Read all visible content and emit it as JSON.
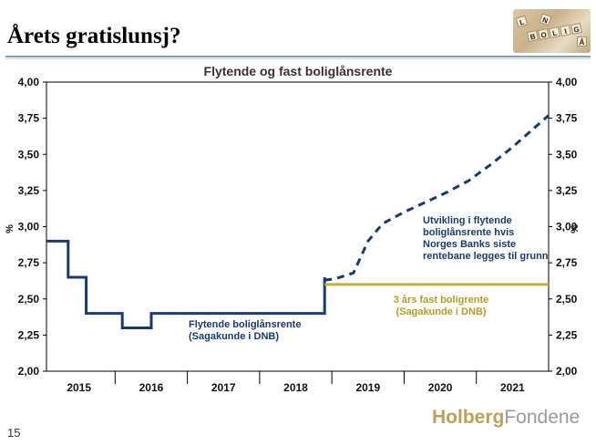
{
  "slide": {
    "title": "Årets gratislunsj?",
    "page_number": "15",
    "logo_bold": "Holberg",
    "logo_rest": "Fondene",
    "image_tiles": [
      "B",
      "O",
      "L",
      "I",
      "G",
      "L",
      "Å",
      "N"
    ]
  },
  "chart_data": {
    "type": "line",
    "title": "Flytende og fast boliglånsrente",
    "ylabel": "%",
    "ylabel_right": "%",
    "ylim": [
      2.0,
      4.0
    ],
    "xlim": [
      2014.55,
      2021.5
    ],
    "yticks": [
      2.0,
      2.25,
      2.5,
      2.75,
      3.0,
      3.25,
      3.5,
      3.75,
      4.0
    ],
    "ytick_labels": [
      "2,00",
      "2,25",
      "2,50",
      "2,75",
      "3,00",
      "3,25",
      "3,50",
      "3,75",
      "4,00"
    ],
    "xtick_labels": [
      "2015",
      "2016",
      "2017",
      "2018",
      "2019",
      "2020",
      "2021"
    ],
    "xtick_centers": [
      2015.0,
      2016.0,
      2017.0,
      2018.0,
      2019.0,
      2020.0,
      2021.0
    ],
    "year_boundaries": [
      2015.5,
      2016.5,
      2017.5,
      2018.5,
      2019.5,
      2020.5
    ],
    "grid": false,
    "series": [
      {
        "name": "Flytende boliglånsrente (Sagakunde i DNB)",
        "style": "solid-step",
        "color": "#1a3a6e",
        "x": [
          2014.55,
          2014.85,
          2014.85,
          2015.1,
          2015.1,
          2015.6,
          2015.6,
          2016.0,
          2016.0,
          2016.65,
          2016.65,
          2018.4,
          2018.4
        ],
        "y": [
          2.9,
          2.9,
          2.65,
          2.65,
          2.4,
          2.4,
          2.3,
          2.3,
          2.4,
          2.4,
          2.4,
          2.4,
          2.65
        ]
      },
      {
        "name": "Utvikling i flytende boliglånsrente hvis Norges Banks siste rentebane legges til grunn",
        "style": "dashed",
        "color": "#1a3a6e",
        "x": [
          2018.4,
          2018.55,
          2018.8,
          2019.0,
          2019.2,
          2019.5,
          2019.8,
          2020.1,
          2020.4,
          2020.7,
          2021.0,
          2021.25,
          2021.5
        ],
        "y": [
          2.63,
          2.64,
          2.68,
          2.9,
          3.02,
          3.1,
          3.17,
          3.24,
          3.32,
          3.43,
          3.55,
          3.66,
          3.77
        ]
      },
      {
        "name": "3 års fast boligrente (Sagakunde i DNB)",
        "style": "solid",
        "color": "#c4ac3a",
        "x": [
          2018.4,
          2021.5
        ],
        "y": [
          2.6,
          2.6
        ]
      }
    ],
    "annotations": {
      "floating": [
        "Flytende boliglånsrente",
        "(Sagakunde i DNB)"
      ],
      "projection": [
        "Utvikling i flytende",
        "boliglånsrente hvis",
        "Norges Banks siste",
        "rentebane legges til grunn"
      ],
      "fixed": [
        "3 års fast boligrente",
        "(Sagakunde i DNB)"
      ]
    }
  }
}
